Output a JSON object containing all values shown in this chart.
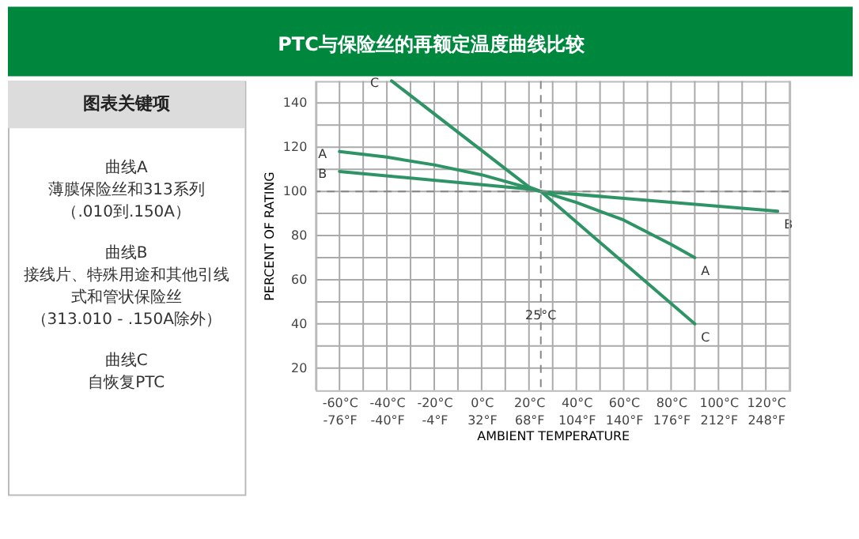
{
  "chart_data": [
    {
      "type": "other",
      "title": "图表关键项",
      "annotations": [
        "曲线A",
        "薄膜保险丝和313系列",
        "（.010到.150A）",
        "曲线B",
        "接线片、特殊用途和其他引线式和管状保险丝",
        "（313.010 - .150A除外）",
        "曲线C",
        "自恢复PTC"
      ]
    },
    {
      "type": "line",
      "title": "PTC与保险丝的再额定温度曲线比较",
      "xlabel": "AMBIENT TEMPERATURE",
      "ylabel": "PERCENT OF RATING",
      "xlim": [
        -70,
        130
      ],
      "ylim": [
        10,
        150
      ],
      "xticks": [
        {
          "value": -60,
          "label": "-60°C"
        },
        {
          "value": -50,
          "label": null
        },
        {
          "value": -40,
          "label": "-40°C"
        },
        {
          "value": -30,
          "label": null
        },
        {
          "value": -20,
          "label": "-20°C"
        },
        {
          "value": -10,
          "label": null
        },
        {
          "value": 0,
          "label": "0°C"
        },
        {
          "value": 10,
          "label": null
        },
        {
          "value": 20,
          "label": "20°C"
        },
        {
          "value": 30,
          "label": null
        },
        {
          "value": 40,
          "label": "40°C"
        },
        {
          "value": 50,
          "label": null
        },
        {
          "value": 60,
          "label": "60°C"
        },
        {
          "value": 70,
          "label": null
        },
        {
          "value": 80,
          "label": "80°C"
        },
        {
          "value": 90,
          "label": null
        },
        {
          "value": 100,
          "label": "100°C"
        },
        {
          "value": 110,
          "label": null
        },
        {
          "value": 120,
          "label": "120°C"
        }
      ],
      "x2lim": [
        -94,
        266
      ],
      "x2ticks": [
        {
          "value": -76,
          "label": "-76°F"
        },
        {
          "value": -40,
          "label": "-40°F"
        },
        {
          "value": -4,
          "label": "-4°F"
        },
        {
          "value": 32,
          "label": "32°F"
        },
        {
          "value": 68,
          "label": "68°F"
        },
        {
          "value": 104,
          "label": "104°F"
        },
        {
          "value": 140,
          "label": "140°F"
        },
        {
          "value": 176,
          "label": "176°F"
        },
        {
          "value": 212,
          "label": "212°F"
        },
        {
          "value": 248,
          "label": "248°F"
        }
      ],
      "yticks": [
        20,
        {
          "value": 30,
          "label": null
        },
        40,
        {
          "value": 50,
          "label": null
        },
        60,
        {
          "value": 70,
          "label": null
        },
        80,
        {
          "value": 90,
          "label": null
        },
        100,
        {
          "value": 110,
          "label": null
        },
        120,
        {
          "value": 130,
          "label": null
        },
        140
      ],
      "grid": true,
      "legend": false,
      "ref_lines": [
        {
          "axis": "x",
          "value": 25,
          "label": "25°C",
          "line_style": "dashed",
          "color": "#888888"
        },
        {
          "axis": "y",
          "value": 100,
          "label": null,
          "line_style": "dashed",
          "color": "#888888"
        }
      ],
      "series": [
        {
          "name": "A",
          "color": "#2e9465",
          "x": [
            -60,
            -40,
            -20,
            0,
            20,
            25,
            40,
            60,
            80,
            90
          ],
          "values": [
            118,
            115.5,
            112,
            107.5,
            101.5,
            100,
            95,
            87,
            76,
            70
          ]
        },
        {
          "name": "B",
          "color": "#2e9465",
          "x": [
            -60,
            20,
            25,
            125
          ],
          "values": [
            109,
            101,
            100,
            91
          ]
        },
        {
          "name": "C",
          "color": "#2e9465",
          "x": [
            -38,
            20,
            25,
            90
          ],
          "values": [
            150,
            102,
            100,
            40
          ]
        }
      ]
    }
  ]
}
